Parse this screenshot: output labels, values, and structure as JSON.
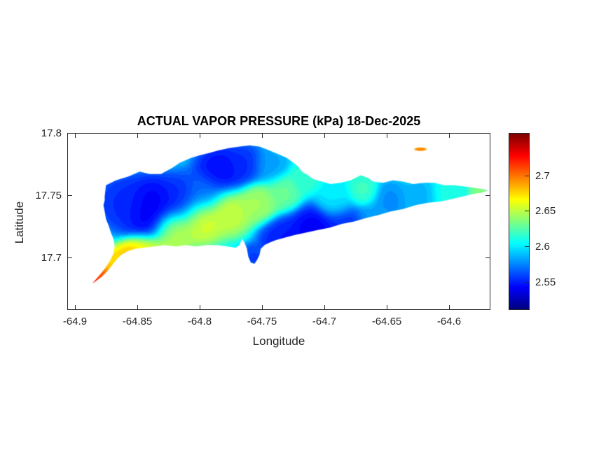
{
  "chart_data": {
    "type": "heatmap",
    "title": "ACTUAL VAPOR PRESSURE (kPa) 18-Dec-2025",
    "variable": "ACTUAL VAPOR PRESSURE",
    "units": "kPa",
    "date": "18-Dec-2025",
    "xlabel": "Longitude",
    "ylabel": "Latitude",
    "xlim": [
      -64.906,
      -64.567
    ],
    "ylim": [
      17.658,
      17.8
    ],
    "xticks": [
      -64.9,
      -64.85,
      -64.8,
      -64.75,
      -64.7,
      -64.65,
      -64.6
    ],
    "yticks": [
      17.8,
      17.75,
      17.7
    ],
    "grid": false,
    "colorbar": {
      "position": "right",
      "colormap": "jet",
      "min": 2.51,
      "max": 2.76,
      "ticks": [
        2.7,
        2.65,
        2.6,
        2.55
      ]
    },
    "background_value": 2.6,
    "background_weight": 0.05,
    "level_step": 0.005,
    "island_outline": [
      [
        -64.876,
        17.749
      ],
      [
        -64.875,
        17.758
      ],
      [
        -64.867,
        17.762
      ],
      [
        -64.857,
        17.765
      ],
      [
        -64.848,
        17.769
      ],
      [
        -64.84,
        17.767
      ],
      [
        -64.831,
        17.767
      ],
      [
        -64.822,
        17.772
      ],
      [
        -64.816,
        17.776
      ],
      [
        -64.807,
        17.78
      ],
      [
        -64.8,
        17.782
      ],
      [
        -64.792,
        17.784
      ],
      [
        -64.785,
        17.786
      ],
      [
        -64.776,
        17.788
      ],
      [
        -64.768,
        17.789
      ],
      [
        -64.76,
        17.79
      ],
      [
        -64.752,
        17.789
      ],
      [
        -64.744,
        17.786
      ],
      [
        -64.737,
        17.783
      ],
      [
        -64.73,
        17.78
      ],
      [
        -64.726,
        17.777
      ],
      [
        -64.721,
        17.773
      ],
      [
        -64.718,
        17.769
      ],
      [
        -64.713,
        17.766
      ],
      [
        -64.709,
        17.763
      ],
      [
        -64.702,
        17.761
      ],
      [
        -64.695,
        17.759
      ],
      [
        -64.687,
        17.76
      ],
      [
        -64.679,
        17.762
      ],
      [
        -64.671,
        17.766
      ],
      [
        -64.665,
        17.764
      ],
      [
        -64.661,
        17.761
      ],
      [
        -64.653,
        17.76
      ],
      [
        -64.645,
        17.762
      ],
      [
        -64.637,
        17.761
      ],
      [
        -64.629,
        17.759
      ],
      [
        -64.62,
        17.76
      ],
      [
        -64.612,
        17.76
      ],
      [
        -64.604,
        17.758
      ],
      [
        -64.596,
        17.758
      ],
      [
        -64.588,
        17.757
      ],
      [
        -64.58,
        17.756
      ],
      [
        -64.573,
        17.755
      ],
      [
        -64.569,
        17.754
      ],
      [
        -64.574,
        17.752
      ],
      [
        -64.581,
        17.751
      ],
      [
        -64.589,
        17.749
      ],
      [
        -64.598,
        17.747
      ],
      [
        -64.607,
        17.745
      ],
      [
        -64.617,
        17.744
      ],
      [
        -64.627,
        17.742
      ],
      [
        -64.637,
        17.739
      ],
      [
        -64.647,
        17.737
      ],
      [
        -64.657,
        17.734
      ],
      [
        -64.666,
        17.732
      ],
      [
        -64.676,
        17.729
      ],
      [
        -64.686,
        17.727
      ],
      [
        -64.696,
        17.724
      ],
      [
        -64.706,
        17.722
      ],
      [
        -64.715,
        17.72
      ],
      [
        -64.724,
        17.718
      ],
      [
        -64.732,
        17.716
      ],
      [
        -64.739,
        17.714
      ],
      [
        -64.744,
        17.712
      ],
      [
        -64.748,
        17.71
      ],
      [
        -64.751,
        17.707
      ],
      [
        -64.752,
        17.702
      ],
      [
        -64.754,
        17.698
      ],
      [
        -64.756,
        17.695
      ],
      [
        -64.759,
        17.696
      ],
      [
        -64.761,
        17.701
      ],
      [
        -64.762,
        17.707
      ],
      [
        -64.764,
        17.712
      ],
      [
        -64.766,
        17.715
      ],
      [
        -64.768,
        17.71
      ],
      [
        -64.771,
        17.708
      ],
      [
        -64.778,
        17.709
      ],
      [
        -64.786,
        17.71
      ],
      [
        -64.794,
        17.71
      ],
      [
        -64.803,
        17.709
      ],
      [
        -64.811,
        17.71
      ],
      [
        -64.819,
        17.709
      ],
      [
        -64.828,
        17.71
      ],
      [
        -64.836,
        17.709
      ],
      [
        -64.845,
        17.708
      ],
      [
        -64.852,
        17.707
      ],
      [
        -64.858,
        17.705
      ],
      [
        -64.863,
        17.702
      ],
      [
        -64.866,
        17.699
      ],
      [
        -64.87,
        17.694
      ],
      [
        -64.874,
        17.689
      ],
      [
        -64.878,
        17.685
      ],
      [
        -64.882,
        17.682
      ],
      [
        -64.886,
        17.679
      ],
      [
        -64.881,
        17.685
      ],
      [
        -64.876,
        17.691
      ],
      [
        -64.872,
        17.697
      ],
      [
        -64.869,
        17.703
      ],
      [
        -64.868,
        17.709
      ],
      [
        -64.869,
        17.715
      ],
      [
        -64.871,
        17.72
      ],
      [
        -64.873,
        17.726
      ],
      [
        -64.875,
        17.731
      ],
      [
        -64.876,
        17.737
      ],
      [
        -64.877,
        17.742
      ],
      [
        -64.876,
        17.746
      ]
    ],
    "islet": {
      "center": [
        -64.623,
        17.787
      ],
      "rx": 0.005,
      "ry": 0.0014
    },
    "field_points": [
      {
        "lon": -64.886,
        "lat": 17.679,
        "value": 2.75,
        "sigma": 0.0035
      },
      {
        "lon": -64.879,
        "lat": 17.685,
        "value": 2.715,
        "sigma": 0.005
      },
      {
        "lon": -64.868,
        "lat": 17.694,
        "value": 2.68,
        "sigma": 0.006
      },
      {
        "lon": -64.853,
        "lat": 17.699,
        "value": 2.69,
        "sigma": 0.007
      },
      {
        "lon": -64.842,
        "lat": 17.701,
        "value": 2.665,
        "sigma": 0.008
      },
      {
        "lon": -64.826,
        "lat": 17.704,
        "value": 2.65,
        "sigma": 0.007
      },
      {
        "lon": -64.861,
        "lat": 17.744,
        "value": 2.55,
        "sigma": 0.01
      },
      {
        "lon": -64.838,
        "lat": 17.739,
        "value": 2.535,
        "sigma": 0.012
      },
      {
        "lon": -64.814,
        "lat": 17.746,
        "value": 2.55,
        "sigma": 0.01
      },
      {
        "lon": -64.796,
        "lat": 17.752,
        "value": 2.57,
        "sigma": 0.008
      },
      {
        "lon": -64.783,
        "lat": 17.768,
        "value": 2.54,
        "sigma": 0.01
      },
      {
        "lon": -64.764,
        "lat": 17.773,
        "value": 2.55,
        "sigma": 0.008
      },
      {
        "lon": -64.744,
        "lat": 17.772,
        "value": 2.58,
        "sigma": 0.007
      },
      {
        "lon": -64.82,
        "lat": 17.723,
        "value": 2.655,
        "sigma": 0.008
      },
      {
        "lon": -64.799,
        "lat": 17.731,
        "value": 2.66,
        "sigma": 0.009
      },
      {
        "lon": -64.777,
        "lat": 17.738,
        "value": 2.655,
        "sigma": 0.009
      },
      {
        "lon": -64.754,
        "lat": 17.745,
        "value": 2.645,
        "sigma": 0.008
      },
      {
        "lon": -64.734,
        "lat": 17.753,
        "value": 2.63,
        "sigma": 0.007
      },
      {
        "lon": -64.757,
        "lat": 17.7,
        "value": 2.555,
        "sigma": 0.005
      },
      {
        "lon": -64.733,
        "lat": 17.713,
        "value": 2.545,
        "sigma": 0.009
      },
      {
        "lon": -64.708,
        "lat": 17.719,
        "value": 2.535,
        "sigma": 0.01
      },
      {
        "lon": -64.683,
        "lat": 17.726,
        "value": 2.55,
        "sigma": 0.009
      },
      {
        "lon": -64.662,
        "lat": 17.732,
        "value": 2.58,
        "sigma": 0.007
      },
      {
        "lon": -64.716,
        "lat": 17.764,
        "value": 2.615,
        "sigma": 0.006
      },
      {
        "lon": -64.69,
        "lat": 17.745,
        "value": 2.6,
        "sigma": 0.007
      },
      {
        "lon": -64.669,
        "lat": 17.752,
        "value": 2.62,
        "sigma": 0.006
      },
      {
        "lon": -64.648,
        "lat": 17.745,
        "value": 2.575,
        "sigma": 0.007
      },
      {
        "lon": -64.624,
        "lat": 17.748,
        "value": 2.585,
        "sigma": 0.007
      },
      {
        "lon": -64.6,
        "lat": 17.75,
        "value": 2.61,
        "sigma": 0.007
      },
      {
        "lon": -64.576,
        "lat": 17.753,
        "value": 2.635,
        "sigma": 0.004
      },
      {
        "lon": -64.623,
        "lat": 17.787,
        "value": 2.7,
        "sigma": 0.003
      }
    ]
  }
}
